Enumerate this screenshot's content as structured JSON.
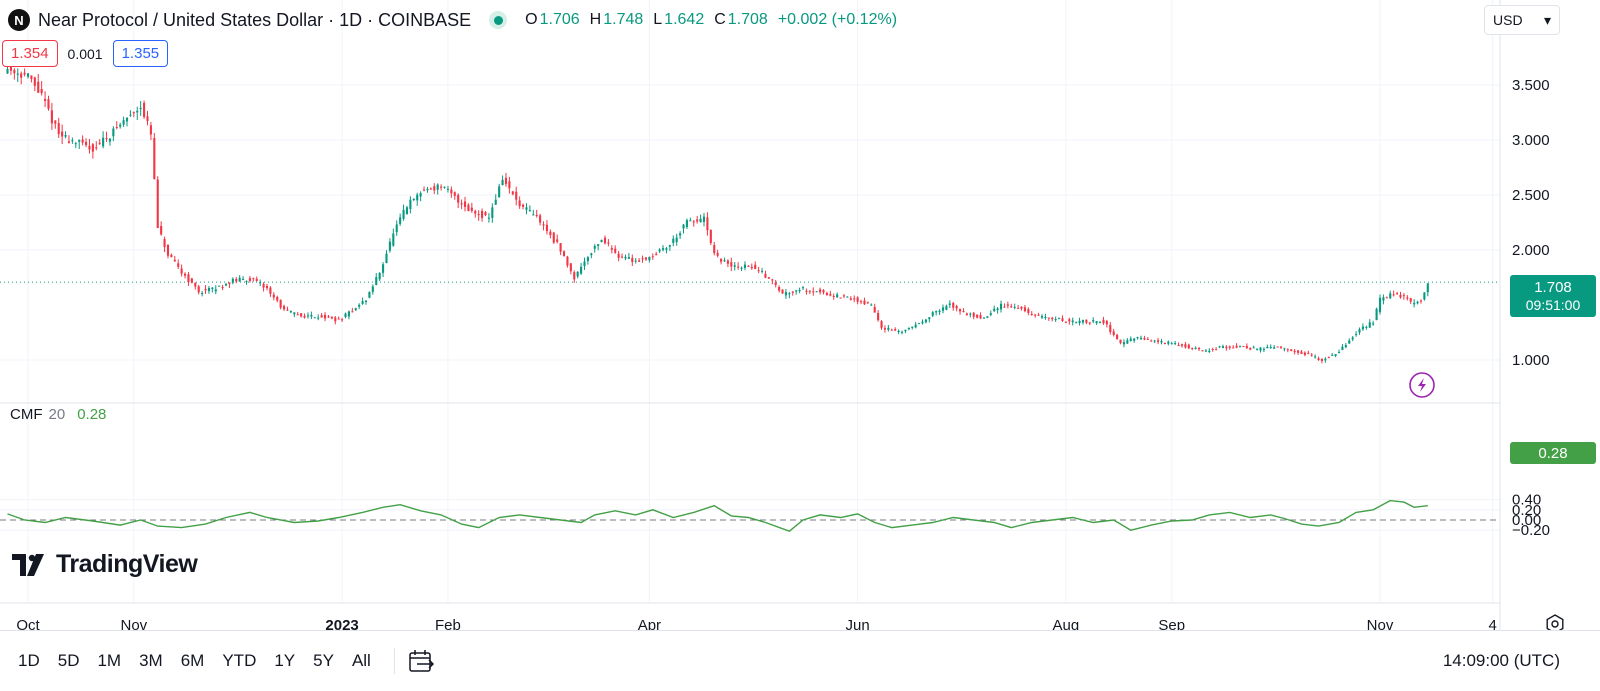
{
  "header": {
    "logo_glyph": "N",
    "title": "Near Protocol / United States Dollar · 1D · COINBASE",
    "ohlc": [
      {
        "key": "O",
        "value": "1.706"
      },
      {
        "key": "H",
        "value": "1.748"
      },
      {
        "key": "L",
        "value": "1.642"
      },
      {
        "key": "C",
        "value": "1.708"
      },
      {
        "key": "",
        "value": "+0.002 (+0.12%)"
      }
    ],
    "sell_price": "1.354",
    "spread": "0.001",
    "buy_price": "1.355",
    "currency": "USD",
    "currency_caret": "▾"
  },
  "colors": {
    "up": "#089981",
    "down": "#f23645",
    "cmf": "#43a047",
    "grid": "#f0f3fa",
    "zero_line": "#787b86",
    "live_marker": "#9c27b0"
  },
  "indicator": {
    "name": "CMF",
    "param": "20",
    "value": "0.28"
  },
  "price_label": {
    "value": "1.708",
    "countdown": "09:51:00"
  },
  "cmf_label": "0.28",
  "brand": "TradingView",
  "bottom": {
    "ranges": [
      "1D",
      "5D",
      "1M",
      "3M",
      "6M",
      "YTD",
      "1Y",
      "5Y",
      "All"
    ],
    "clock": "14:09:00 (UTC)"
  },
  "chart_data": [
    {
      "type": "candlestick",
      "title": "Near Protocol / United States Dollar · 1D · COINBASE",
      "x_tick_labels": [
        "Oct",
        "Nov",
        "2023",
        "Feb",
        "Apr",
        "Jun",
        "Aug",
        "Sep",
        "Nov",
        "4"
      ],
      "y_tick_labels": [
        "3.500",
        "3.000",
        "2.500",
        "2.000",
        "1.000"
      ],
      "y_axis_values": [
        3.5,
        3.0,
        2.5,
        2.0,
        1.0
      ],
      "close_path": [
        [
          "2022-09-25",
          3.65
        ],
        [
          "2022-10-01",
          3.58
        ],
        [
          "2022-10-05",
          3.4
        ],
        [
          "2022-10-10",
          3.05
        ],
        [
          "2022-10-15",
          2.98
        ],
        [
          "2022-10-20",
          2.92
        ],
        [
          "2022-10-25",
          3.05
        ],
        [
          "2022-10-30",
          3.2
        ],
        [
          "2022-11-03",
          3.32
        ],
        [
          "2022-11-06",
          3.05
        ],
        [
          "2022-11-08",
          2.2
        ],
        [
          "2022-11-11",
          1.95
        ],
        [
          "2022-11-15",
          1.8
        ],
        [
          "2022-11-20",
          1.62
        ],
        [
          "2022-11-25",
          1.65
        ],
        [
          "2022-11-30",
          1.72
        ],
        [
          "2022-12-05",
          1.74
        ],
        [
          "2022-12-10",
          1.65
        ],
        [
          "2022-12-15",
          1.45
        ],
        [
          "2022-12-20",
          1.4
        ],
        [
          "2022-12-25",
          1.4
        ],
        [
          "2022-12-31",
          1.36
        ],
        [
          "2023-01-04",
          1.45
        ],
        [
          "2023-01-08",
          1.55
        ],
        [
          "2023-01-12",
          1.8
        ],
        [
          "2023-01-16",
          2.15
        ],
        [
          "2023-01-20",
          2.4
        ],
        [
          "2023-01-25",
          2.55
        ],
        [
          "2023-01-30",
          2.58
        ],
        [
          "2023-02-04",
          2.45
        ],
        [
          "2023-02-08",
          2.35
        ],
        [
          "2023-02-13",
          2.3
        ],
        [
          "2023-02-17",
          2.65
        ],
        [
          "2023-02-22",
          2.4
        ],
        [
          "2023-02-27",
          2.3
        ],
        [
          "2023-03-05",
          2.05
        ],
        [
          "2023-03-10",
          1.75
        ],
        [
          "2023-03-14",
          1.95
        ],
        [
          "2023-03-18",
          2.1
        ],
        [
          "2023-03-23",
          1.95
        ],
        [
          "2023-03-28",
          1.9
        ],
        [
          "2023-04-02",
          1.95
        ],
        [
          "2023-04-07",
          2.05
        ],
        [
          "2023-04-12",
          2.25
        ],
        [
          "2023-04-17",
          2.28
        ],
        [
          "2023-04-20",
          1.95
        ],
        [
          "2023-04-25",
          1.85
        ],
        [
          "2023-05-01",
          1.85
        ],
        [
          "2023-05-06",
          1.75
        ],
        [
          "2023-05-10",
          1.6
        ],
        [
          "2023-05-15",
          1.65
        ],
        [
          "2023-05-21",
          1.62
        ],
        [
          "2023-05-26",
          1.58
        ],
        [
          "2023-05-31",
          1.55
        ],
        [
          "2023-06-05",
          1.5
        ],
        [
          "2023-06-08",
          1.3
        ],
        [
          "2023-06-13",
          1.25
        ],
        [
          "2023-06-18",
          1.32
        ],
        [
          "2023-06-23",
          1.42
        ],
        [
          "2023-06-28",
          1.5
        ],
        [
          "2023-07-03",
          1.42
        ],
        [
          "2023-07-08",
          1.38
        ],
        [
          "2023-07-13",
          1.5
        ],
        [
          "2023-07-18",
          1.48
        ],
        [
          "2023-07-23",
          1.4
        ],
        [
          "2023-07-28",
          1.38
        ],
        [
          "2023-08-02",
          1.35
        ],
        [
          "2023-08-07",
          1.35
        ],
        [
          "2023-08-12",
          1.35
        ],
        [
          "2023-08-17",
          1.15
        ],
        [
          "2023-08-22",
          1.2
        ],
        [
          "2023-08-27",
          1.17
        ],
        [
          "2023-09-01",
          1.15
        ],
        [
          "2023-09-06",
          1.12
        ],
        [
          "2023-09-11",
          1.08
        ],
        [
          "2023-09-16",
          1.12
        ],
        [
          "2023-09-21",
          1.12
        ],
        [
          "2023-09-26",
          1.1
        ],
        [
          "2023-10-01",
          1.12
        ],
        [
          "2023-10-06",
          1.08
        ],
        [
          "2023-10-11",
          1.05
        ],
        [
          "2023-10-15",
          1.0
        ],
        [
          "2023-10-20",
          1.08
        ],
        [
          "2023-10-25",
          1.25
        ],
        [
          "2023-10-30",
          1.35
        ],
        [
          "2023-11-01",
          1.55
        ],
        [
          "2023-11-05",
          1.6
        ],
        [
          "2023-11-08",
          1.58
        ],
        [
          "2023-11-10",
          1.52
        ],
        [
          "2023-11-13",
          1.55
        ],
        [
          "2023-11-15",
          1.708
        ]
      ]
    },
    {
      "type": "line",
      "series": [
        {
          "name": "CMF 20"
        }
      ],
      "y_tick_labels": [
        "0.40",
        "0.20",
        "0.00",
        "−0.20"
      ],
      "y_axis_values": [
        0.4,
        0.2,
        0.0,
        -0.2
      ],
      "values": [
        [
          "2022-09-25",
          0.12
        ],
        [
          "2022-09-30",
          0.0
        ],
        [
          "2022-10-06",
          -0.05
        ],
        [
          "2022-10-12",
          0.05
        ],
        [
          "2022-10-20",
          -0.02
        ],
        [
          "2022-10-28",
          -0.1
        ],
        [
          "2022-11-03",
          0.0
        ],
        [
          "2022-11-08",
          -0.12
        ],
        [
          "2022-11-15",
          -0.15
        ],
        [
          "2022-11-22",
          -0.08
        ],
        [
          "2022-11-28",
          0.05
        ],
        [
          "2022-12-05",
          0.15
        ],
        [
          "2022-12-10",
          0.05
        ],
        [
          "2022-12-18",
          -0.05
        ],
        [
          "2022-12-25",
          -0.02
        ],
        [
          "2022-12-31",
          0.05
        ],
        [
          "2023-01-07",
          0.15
        ],
        [
          "2023-01-13",
          0.25
        ],
        [
          "2023-01-18",
          0.3
        ],
        [
          "2023-01-24",
          0.18
        ],
        [
          "2023-01-30",
          0.1
        ],
        [
          "2023-02-05",
          -0.08
        ],
        [
          "2023-02-10",
          -0.15
        ],
        [
          "2023-02-16",
          0.05
        ],
        [
          "2023-02-22",
          0.1
        ],
        [
          "2023-02-28",
          0.05
        ],
        [
          "2023-03-06",
          0.0
        ],
        [
          "2023-03-12",
          -0.05
        ],
        [
          "2023-03-16",
          0.1
        ],
        [
          "2023-03-22",
          0.18
        ],
        [
          "2023-03-28",
          0.1
        ],
        [
          "2023-04-02",
          0.2
        ],
        [
          "2023-04-08",
          0.05
        ],
        [
          "2023-04-14",
          0.15
        ],
        [
          "2023-04-20",
          0.28
        ],
        [
          "2023-04-25",
          0.08
        ],
        [
          "2023-04-30",
          0.05
        ],
        [
          "2023-05-05",
          -0.05
        ],
        [
          "2023-05-12",
          -0.22
        ],
        [
          "2023-05-16",
          0.0
        ],
        [
          "2023-05-21",
          0.1
        ],
        [
          "2023-05-27",
          0.05
        ],
        [
          "2023-06-01",
          0.12
        ],
        [
          "2023-06-06",
          -0.05
        ],
        [
          "2023-06-11",
          -0.15
        ],
        [
          "2023-06-17",
          -0.1
        ],
        [
          "2023-06-23",
          -0.05
        ],
        [
          "2023-06-29",
          0.05
        ],
        [
          "2023-07-05",
          0.0
        ],
        [
          "2023-07-11",
          -0.05
        ],
        [
          "2023-07-16",
          -0.15
        ],
        [
          "2023-07-22",
          -0.05
        ],
        [
          "2023-07-28",
          0.0
        ],
        [
          "2023-08-03",
          0.05
        ],
        [
          "2023-08-09",
          -0.05
        ],
        [
          "2023-08-15",
          0.0
        ],
        [
          "2023-08-20",
          -0.2
        ],
        [
          "2023-08-26",
          -0.1
        ],
        [
          "2023-09-01",
          -0.02
        ],
        [
          "2023-09-07",
          0.0
        ],
        [
          "2023-09-12",
          0.1
        ],
        [
          "2023-09-18",
          0.15
        ],
        [
          "2023-09-24",
          0.05
        ],
        [
          "2023-09-30",
          0.1
        ],
        [
          "2023-10-04",
          0.03
        ],
        [
          "2023-10-09",
          -0.08
        ],
        [
          "2023-10-14",
          -0.12
        ],
        [
          "2023-10-20",
          -0.05
        ],
        [
          "2023-10-25",
          0.15
        ],
        [
          "2023-10-30",
          0.2
        ],
        [
          "2023-11-04",
          0.38
        ],
        [
          "2023-11-08",
          0.35
        ],
        [
          "2023-11-11",
          0.25
        ],
        [
          "2023-11-15",
          0.28
        ]
      ]
    }
  ]
}
